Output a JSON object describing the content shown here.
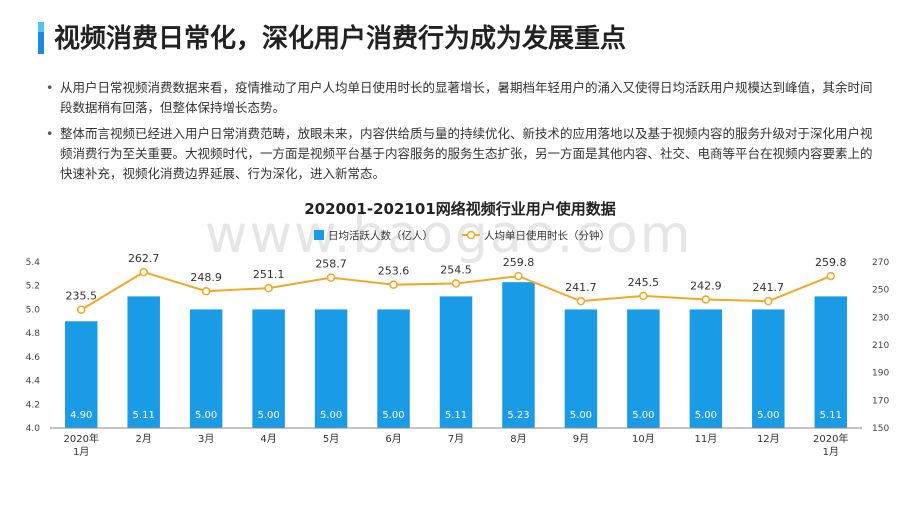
{
  "page": {
    "title": "视频消费日常化，深化用户消费行为成为发展重点",
    "bullets": [
      "从用户日常视频消费数据来看，疫情推动了用户人均单日使用时长的显著增长，暑期档年轻用户的涌入又使得日均活跃用户规模达到峰值，其余时间段数据稍有回落，但整体保持增长态势。",
      "整体而言视频已经进入用户日常消费范畴，放眼未来，内容供给质与量的持续优化、新技术的应用落地以及基于视频内容的服务升级对于深化用户视频消费行为至关重要。大视频时代，一方面是视频平台基于内容服务的服务生态扩张，另一方面是其他内容、社交、电商等平台在视频内容要素上的快速补充，视频化消费边界延展、行为深化，进入新常态。"
    ],
    "watermark": "www.baogao.com"
  },
  "chart_data": {
    "type": "bar",
    "title": "202001-202101网络视频行业用户使用数据",
    "categories": [
      "2020年\n1月",
      "2月",
      "3月",
      "4月",
      "5月",
      "6月",
      "7月",
      "8月",
      "9月",
      "10月",
      "11月",
      "12月",
      "2020年\n1月"
    ],
    "series": [
      {
        "name": "日均活跃人数（亿人）",
        "type": "bar",
        "axis": "left",
        "color": "#1a9be6",
        "values": [
          4.9,
          5.11,
          5.0,
          5.0,
          5.0,
          5.0,
          5.11,
          5.23,
          5.0,
          5.0,
          5.0,
          5.0,
          5.11
        ],
        "labels": [
          "4.90",
          "5.11",
          "5.00",
          "5.00",
          "5.00",
          "5.00",
          "5.11",
          "5.23",
          "5.00",
          "5.00",
          "5.00",
          "5.00",
          "5.11"
        ]
      },
      {
        "name": "人均单日使用时长（分钟）",
        "type": "line",
        "axis": "right",
        "color": "#f5a623",
        "values": [
          235.5,
          262.7,
          248.9,
          251.1,
          258.7,
          253.6,
          254.5,
          259.8,
          241.7,
          245.5,
          242.9,
          241.7,
          259.8
        ],
        "labels": [
          "235.5",
          "262.7",
          "248.9",
          "251.1",
          "258.7",
          "253.6",
          "254.5",
          "259.8",
          "241.7",
          "245.5",
          "242.9",
          "241.7",
          "259.8"
        ]
      }
    ],
    "ylim_left": [
      4.0,
      5.4
    ],
    "yticks_left": [
      "4.0",
      "4.2",
      "4.4",
      "4.6",
      "4.8",
      "5.0",
      "5.2",
      "5.4"
    ],
    "ylim_right": [
      150,
      270
    ],
    "yticks_right": [
      "150",
      "170",
      "190",
      "210",
      "230",
      "250",
      "270"
    ],
    "legend": "top-center",
    "grid": false
  }
}
